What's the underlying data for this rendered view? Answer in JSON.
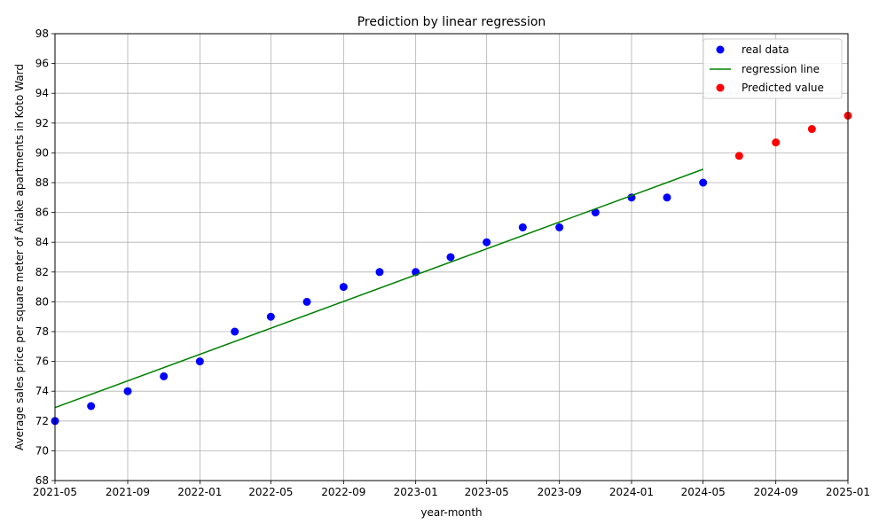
{
  "chart_data": {
    "type": "scatter",
    "title": "Prediction by linear regression",
    "xlabel": "year-month",
    "ylabel": "Average sales price per square meter of Ariake apartments in Koto Ward",
    "xlim": [
      "2021-05-01",
      "2025-01-01"
    ],
    "ylim": [
      68,
      98
    ],
    "x_ticks": [
      "2021-05-01",
      "2021-09-01",
      "2022-01-01",
      "2022-05-01",
      "2022-09-01",
      "2023-01-01",
      "2023-05-01",
      "2023-09-01",
      "2024-01-01",
      "2024-05-01",
      "2024-09-01",
      "2025-01-01"
    ],
    "x_tick_labels": [
      "2021-05",
      "2021-09",
      "2022-01",
      "2022-05",
      "2022-09",
      "2023-01",
      "2023-05",
      "2023-09",
      "2024-01",
      "2024-05",
      "2024-09",
      "2025-01"
    ],
    "y_ticks": [
      68,
      70,
      72,
      74,
      76,
      78,
      80,
      82,
      84,
      86,
      88,
      90,
      92,
      94,
      96,
      98
    ],
    "grid": true,
    "legend_position": "top-right",
    "series": [
      {
        "name": "real data",
        "kind": "scatter",
        "color": "#0000ff",
        "x": [
          "2021-05-01",
          "2021-07-01",
          "2021-09-01",
          "2021-11-01",
          "2022-01-01",
          "2022-03-01",
          "2022-05-01",
          "2022-07-01",
          "2022-09-01",
          "2022-11-01",
          "2023-01-01",
          "2023-03-01",
          "2023-05-01",
          "2023-07-01",
          "2023-09-01",
          "2023-11-01",
          "2024-01-01",
          "2024-03-01",
          "2024-05-01"
        ],
        "y": [
          72,
          73,
          74,
          75,
          76,
          78,
          79,
          80,
          81,
          82,
          82,
          83,
          84,
          85,
          85,
          86,
          87,
          87,
          88
        ]
      },
      {
        "name": "regression line",
        "kind": "line",
        "color": "#008000",
        "x": [
          "2021-05-01",
          "2024-05-01"
        ],
        "y": [
          72.9,
          88.9
        ]
      },
      {
        "name": "Predicted value",
        "kind": "scatter",
        "color": "#ff0000",
        "x": [
          "2024-07-01",
          "2024-09-01",
          "2024-11-01",
          "2025-01-01"
        ],
        "y": [
          89.8,
          90.7,
          91.6,
          92.5
        ]
      }
    ]
  }
}
